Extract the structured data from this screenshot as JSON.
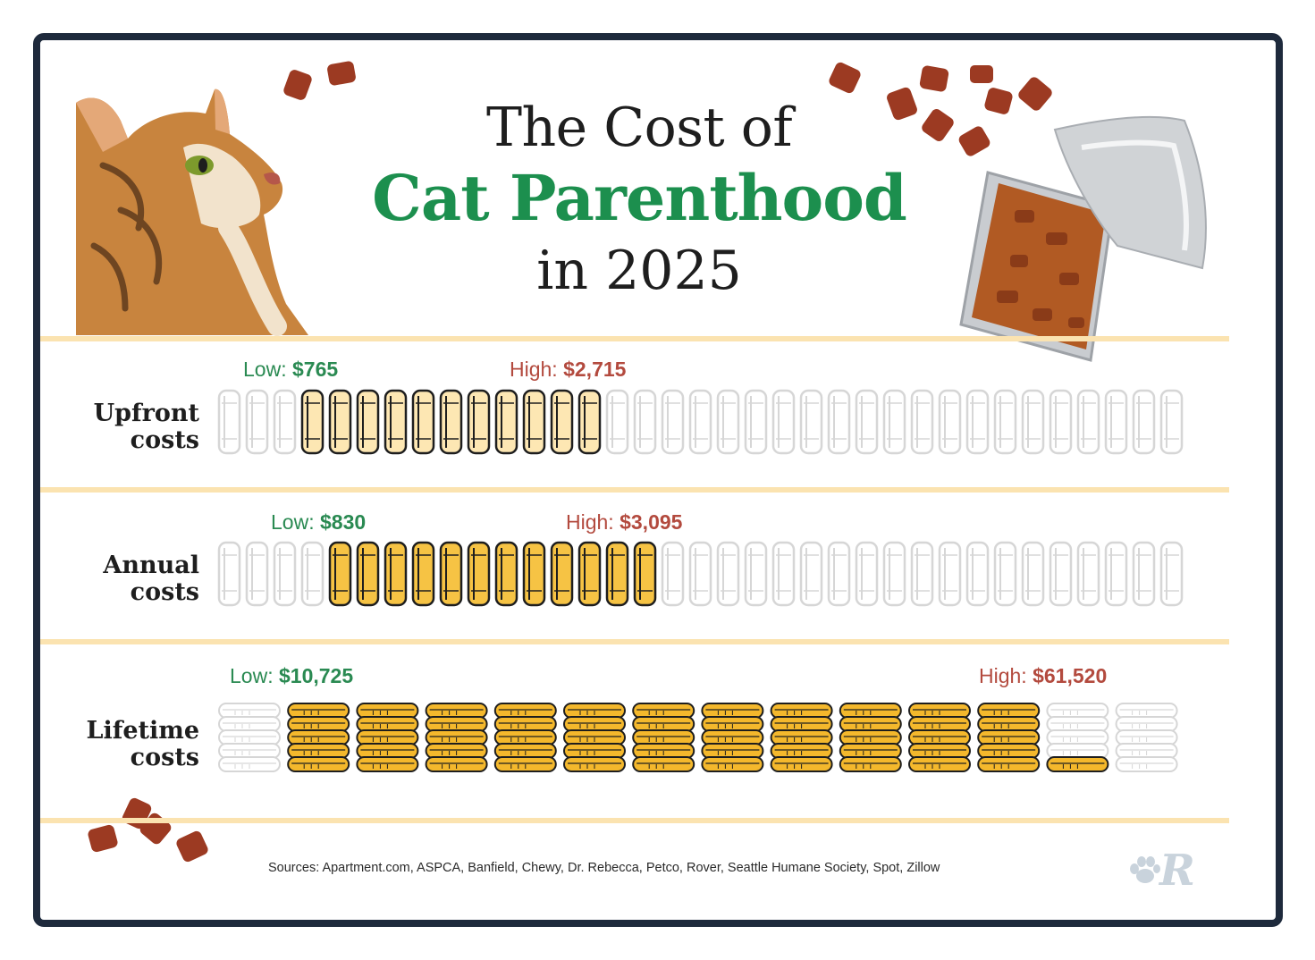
{
  "title": {
    "line1": "The Cost of",
    "line2": "Cat Parenthood",
    "line3": "in 2025"
  },
  "colors": {
    "title_green": "#1c8f4e",
    "low_green": "#2a8a52",
    "high_red": "#b34a3e",
    "can_light_fill": "#fde7b3",
    "can_gold_fill": "#f6c344",
    "coin_gold_fill": "#f4b82c",
    "divider_cream": "#fbe3b0",
    "frame_navy": "#1e2a3c"
  },
  "chart_data": [
    {
      "type": "bar",
      "title": "Upfront costs",
      "unit": "USD",
      "icon": "food-can-icon",
      "total_icons": 35,
      "filled_from_icon": 4,
      "filled_to_icon": 14,
      "low": {
        "prefix": "Low:",
        "label": "$765",
        "value": 765
      },
      "high": {
        "prefix": "High:",
        "label": "$2,715",
        "value": 2715
      }
    },
    {
      "type": "bar",
      "title": "Annual costs",
      "unit": "USD",
      "icon": "food-can-icon",
      "total_icons": 35,
      "filled_from_icon": 5,
      "filled_to_icon": 16,
      "low": {
        "prefix": "Low:",
        "label": "$830",
        "value": 830
      },
      "high": {
        "prefix": "High:",
        "label": "$3,095",
        "value": 3095
      }
    },
    {
      "type": "bar",
      "title": "Lifetime costs",
      "unit": "USD",
      "icon": "coin-stack-icon",
      "total_icons": 14,
      "coins_per_stack": 5,
      "filled_from_stack": 2,
      "filled_to_stack": 12,
      "last_stack_filled_coins": 1,
      "low": {
        "prefix": "Low:",
        "label": "$10,725",
        "value": 10725
      },
      "high": {
        "prefix": "High:",
        "label": "$61,520",
        "value": 61520
      }
    }
  ],
  "rows": [
    {
      "label_line1": "Upfront",
      "label_line2": "costs"
    },
    {
      "label_line1": "Annual",
      "label_line2": "costs"
    },
    {
      "label_line1": "Lifetime",
      "label_line2": "costs"
    }
  ],
  "footer": {
    "sources": "Sources: Apartment.com, ASPCA, Banfield, Chewy, Dr. Rebecca, Petco, Rover, Seattle Humane Society, Spot, Zillow",
    "logo_icon": "rover-paw-logo-icon"
  }
}
